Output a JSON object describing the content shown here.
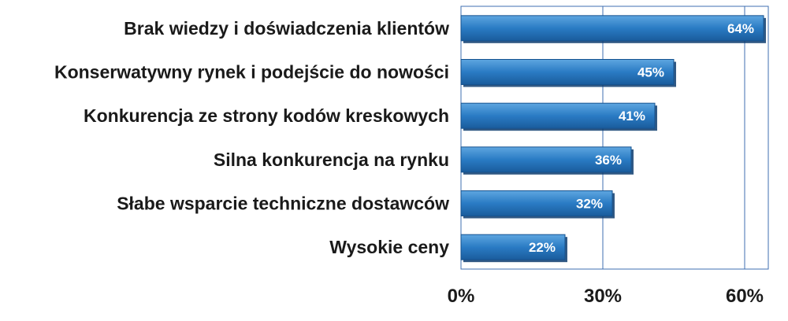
{
  "chart_data": {
    "type": "bar",
    "orientation": "horizontal",
    "categories": [
      "Brak wiedzy i doświadczenia klientów",
      "Konserwatywny rynek i podejście do nowości",
      "Konkurencja ze strony kodów kreskowych",
      "Silna konkurencja na rynku",
      "Słabe wsparcie techniczne dostawców",
      "Wysokie ceny"
    ],
    "values": [
      64,
      45,
      41,
      36,
      32,
      22
    ],
    "data_labels": [
      "64%",
      "45%",
      "41%",
      "36%",
      "32%",
      "22%"
    ],
    "xlim": [
      0,
      65
    ],
    "xticks": [
      0,
      30,
      60
    ],
    "xtick_labels": [
      "0%",
      "30%",
      "60%"
    ],
    "grid": "vertical",
    "bar_color": "#2a7bc4",
    "bar_color_dark": "#15528f",
    "grid_color": "#3f6fb0"
  }
}
